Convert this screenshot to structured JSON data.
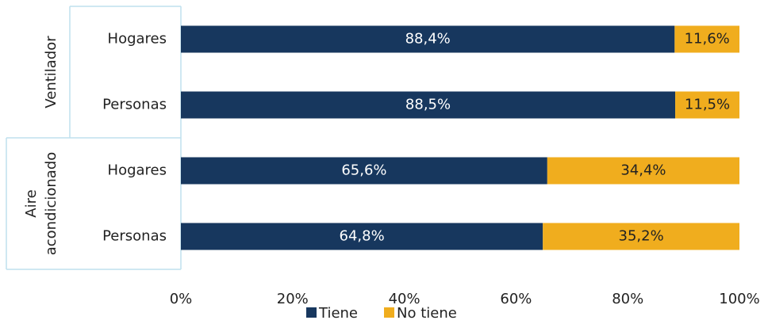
{
  "chart_data": {
    "type": "stacked-barh",
    "groups": [
      {
        "name": "Ventilador",
        "categories": [
          "Hogares",
          "Personas"
        ]
      },
      {
        "name": "Aire acondicionado",
        "categories": [
          "Hogares",
          "Personas"
        ]
      }
    ],
    "series": [
      {
        "name": "Tiene",
        "color": "#17375e",
        "label_color": "#ffffff",
        "values": [
          88.4,
          88.5,
          65.6,
          64.8
        ],
        "value_labels": [
          "88,4%",
          "88,5%",
          "65,6%",
          "64,8%"
        ]
      },
      {
        "name": "No tiene",
        "color": "#f0ad1e",
        "label_color": "#222222",
        "values": [
          11.6,
          11.5,
          34.4,
          35.2
        ],
        "value_labels": [
          "11,6%",
          "11,5%",
          "34,4%",
          "35,2%"
        ]
      }
    ],
    "xlim": [
      0,
      100
    ],
    "xticks": [
      {
        "value": 0,
        "label": "0%"
      },
      {
        "value": 20,
        "label": "20%"
      },
      {
        "value": 40,
        "label": "40%"
      },
      {
        "value": 60,
        "label": "60%"
      },
      {
        "value": 80,
        "label": "80%"
      },
      {
        "value": 100,
        "label": "100%"
      }
    ],
    "legend": "bottom"
  }
}
